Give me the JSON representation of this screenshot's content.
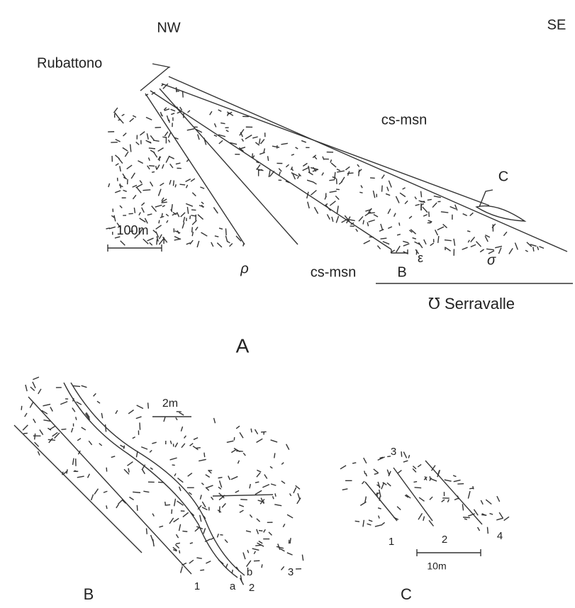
{
  "panel_a": {
    "label": "A",
    "nw": "NW",
    "se": "SE",
    "locality": "Rubattono",
    "upper_unit": "cs-msn",
    "section_c": "C",
    "r": "r",
    "scale": "100m",
    "rho": "ρ",
    "lower_unit": "cs-msn",
    "section_b": "B",
    "epsilon": "ε",
    "sigma": "σ",
    "serravalle": "℧ Serravalle"
  },
  "panel_b": {
    "label": "B",
    "scale": "2m",
    "points": [
      "1",
      "a",
      "b",
      "2",
      "3"
    ]
  },
  "panel_c": {
    "label": "C",
    "scale": "10m",
    "points": [
      "3",
      "1",
      "2",
      "4"
    ]
  }
}
